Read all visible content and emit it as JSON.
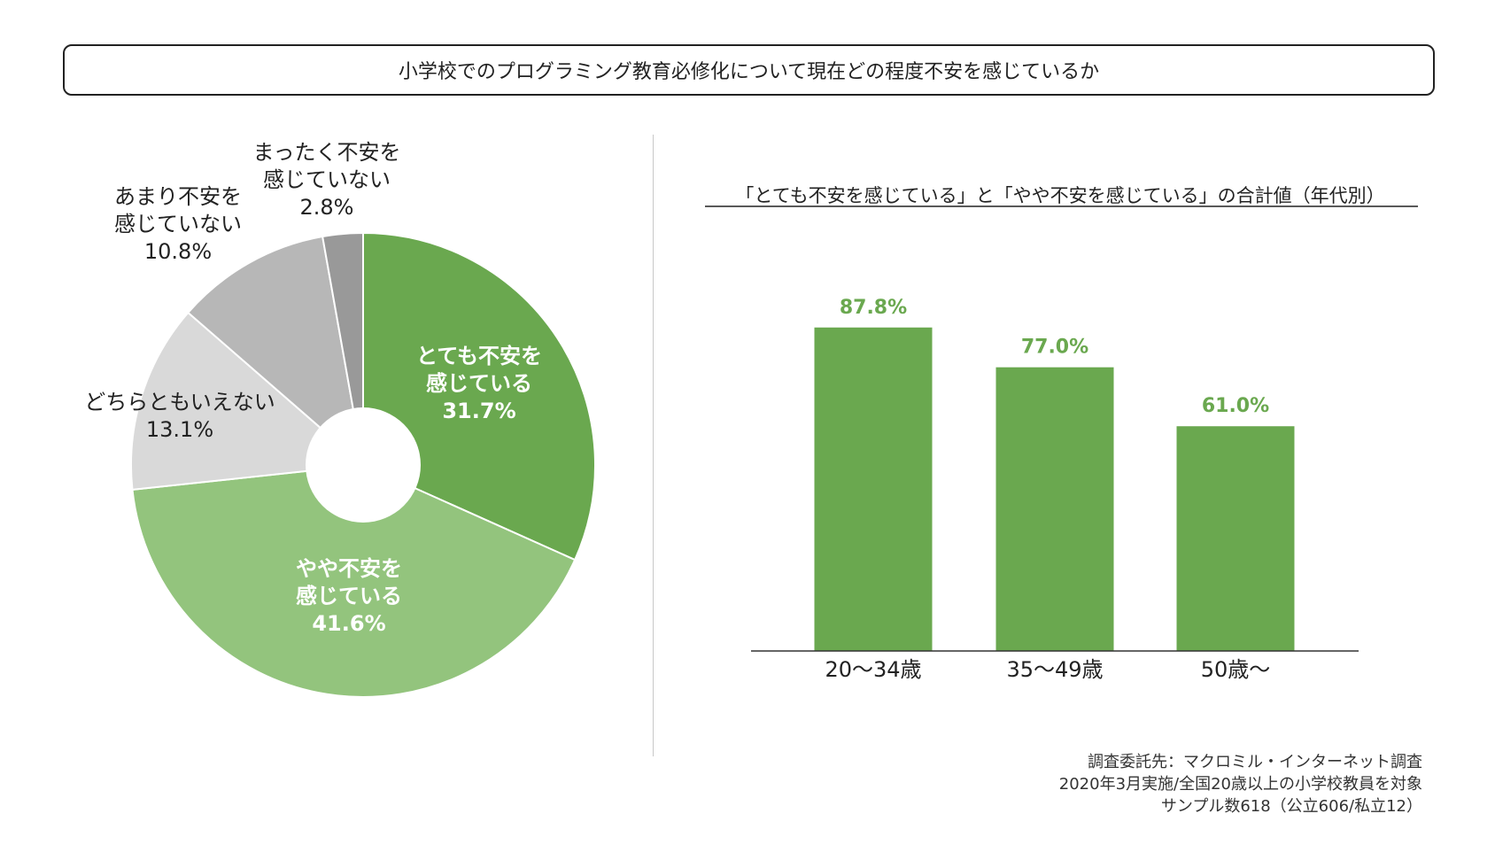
{
  "header": {
    "title": "小学校でのプログラミング教育必修化について現在どの程度不安を感じているか"
  },
  "chart_data": [
    {
      "type": "pie",
      "donut": true,
      "slices": [
        {
          "label_lines": [
            "とても不安を",
            "感じている"
          ],
          "value": 31.7,
          "value_text": "31.7%",
          "color": "#6aa84f",
          "label_color": "#ffffff",
          "bold": true
        },
        {
          "label_lines": [
            "やや不安を",
            "感じている"
          ],
          "value": 41.6,
          "value_text": "41.6%",
          "color": "#93c47d",
          "label_color": "#ffffff",
          "bold": true
        },
        {
          "label_lines": [
            "どちらともいえない"
          ],
          "value": 13.1,
          "value_text": "13.1%",
          "color": "#d9d9d9",
          "label_color": "#222222",
          "bold": false
        },
        {
          "label_lines": [
            "あまり不安を",
            "感じていない"
          ],
          "value": 10.8,
          "value_text": "10.8%",
          "color": "#b7b7b7",
          "label_color": "#222222",
          "bold": false
        },
        {
          "label_lines": [
            "まったく不安を",
            "感じていない"
          ],
          "value": 2.8,
          "value_text": "2.8%",
          "color": "#999999",
          "label_color": "#222222",
          "bold": false
        }
      ]
    },
    {
      "type": "bar",
      "title": "「とても不安を感じている」と「やや不安を感じている」の合計値（年代別）",
      "categories": [
        "20～34歳",
        "35～49歳",
        "50歳～"
      ],
      "values": [
        87.8,
        77.0,
        61.0
      ],
      "value_labels": [
        "87.8%",
        "77.0%",
        "61.0%"
      ],
      "ylim": [
        0,
        100
      ],
      "bar_color": "#6aa84f",
      "label_color": "#6aa84f"
    }
  ],
  "source": {
    "lines": [
      "調査委託先：マクロミル・インターネット調査",
      "2020年3月実施/全国20歳以上の小学校教員を対象",
      "サンプル数618（公立606/私立12）"
    ]
  }
}
